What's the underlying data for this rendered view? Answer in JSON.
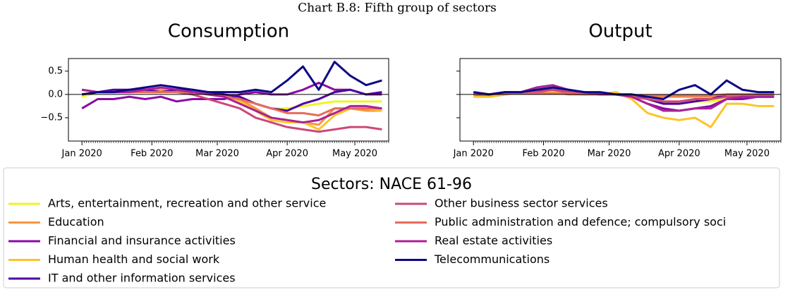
{
  "title": "Chart B.8: Fifth group of sectors",
  "legend_title": "Sectors: NACE 61-96",
  "chart_data": [
    {
      "type": "line",
      "title": "Consumption",
      "hline": 0,
      "xminor": 1,
      "x": [
        0,
        7,
        14,
        21,
        28,
        35,
        42,
        49,
        56,
        63,
        70,
        77,
        84,
        91,
        98,
        105,
        112,
        119,
        126,
        133
      ],
      "xlim": [
        -6,
        136
      ],
      "ylim": [
        -1.0,
        0.77
      ],
      "xticks": [
        {
          "value": 0,
          "label": "Jan 2020"
        },
        {
          "value": 31,
          "label": "Feb 2020"
        },
        {
          "value": 60,
          "label": "Mar 2020"
        },
        {
          "value": 91,
          "label": "Apr 2020"
        },
        {
          "value": 121,
          "label": "May 2020"
        }
      ],
      "yticks": [
        {
          "value": 0.5,
          "label": "0.5"
        },
        {
          "value": 0,
          "label": "0.0"
        },
        {
          "value": -0.5,
          "label": "−0.5"
        }
      ],
      "series": [
        {
          "name": "Arts, entertainment, recreation and other service",
          "color": "#eef522",
          "values": [
            -0.05,
            0.05,
            0.05,
            0.05,
            0.05,
            0.05,
            0.05,
            0.05,
            0,
            0,
            -0.1,
            -0.2,
            -0.3,
            -0.3,
            -0.25,
            -0.2,
            -0.15,
            -0.15,
            -0.15,
            -0.15
          ]
        },
        {
          "name": "Education",
          "color": "#f89540",
          "values": [
            0,
            0.05,
            0.05,
            0.05,
            0.1,
            0.1,
            0.05,
            0.05,
            0,
            0,
            -0.1,
            -0.3,
            -0.5,
            -0.55,
            -0.6,
            -0.65,
            -0.3,
            -0.3,
            -0.35,
            -0.35
          ]
        },
        {
          "name": "Financial and insurance activities",
          "color": "#8b0aa5",
          "values": [
            -0.3,
            -0.1,
            -0.1,
            -0.05,
            -0.1,
            -0.05,
            -0.15,
            -0.1,
            -0.1,
            -0.1,
            0,
            0.05,
            0,
            0,
            0.1,
            0.25,
            0.1,
            0.1,
            0,
            0
          ]
        },
        {
          "name": "Human health and social work",
          "color": "#fdc328",
          "values": [
            0,
            0.05,
            0.05,
            0.1,
            0.05,
            0.05,
            0.1,
            0.05,
            0,
            0,
            -0.15,
            -0.35,
            -0.55,
            -0.6,
            -0.6,
            -0.75,
            -0.45,
            -0.3,
            -0.3,
            -0.35
          ]
        },
        {
          "name": "IT and other information services",
          "color": "#5002a2",
          "values": [
            0.1,
            0.05,
            0.1,
            0.1,
            0.1,
            0.05,
            0.1,
            0.1,
            0.05,
            0,
            -0.05,
            -0.2,
            -0.3,
            -0.35,
            -0.2,
            -0.1,
            0.05,
            0.1,
            0,
            0.05
          ]
        },
        {
          "name": "Other business sector services",
          "color": "#cc4778",
          "values": [
            0,
            0.05,
            0.05,
            0.05,
            0.05,
            0.05,
            0.05,
            0,
            -0.1,
            -0.2,
            -0.3,
            -0.5,
            -0.6,
            -0.7,
            -0.75,
            -0.8,
            -0.75,
            -0.7,
            -0.7,
            -0.75
          ]
        },
        {
          "name": "Public administration and defence; compulsory soci",
          "color": "#e66c5c",
          "values": [
            0,
            0.05,
            0.05,
            0.05,
            0.05,
            0.05,
            0.05,
            0.05,
            0,
            -0.05,
            -0.1,
            -0.2,
            -0.3,
            -0.4,
            -0.4,
            -0.45,
            -0.3,
            -0.3,
            -0.3,
            -0.3
          ]
        },
        {
          "name": "Real estate activities",
          "color": "#a82296",
          "values": [
            0.1,
            0.05,
            0.05,
            0.05,
            0.1,
            0.15,
            0.1,
            0.05,
            0,
            -0.05,
            -0.2,
            -0.35,
            -0.5,
            -0.55,
            -0.6,
            -0.55,
            -0.4,
            -0.25,
            -0.25,
            -0.3
          ]
        },
        {
          "name": "Telecommunications",
          "color": "#0d0887",
          "values": [
            0,
            0.05,
            0.05,
            0.1,
            0.15,
            0.2,
            0.15,
            0.1,
            0.05,
            0.05,
            0.05,
            0.1,
            0.05,
            0.3,
            0.6,
            0.1,
            0.7,
            0.4,
            0.2,
            0.3
          ]
        }
      ]
    },
    {
      "type": "line",
      "title": "Output",
      "hline": 0,
      "xminor": 1,
      "sharey": true,
      "x": [
        0,
        7,
        14,
        21,
        28,
        35,
        42,
        49,
        56,
        63,
        70,
        77,
        84,
        91,
        98,
        105,
        112,
        119,
        126,
        133
      ],
      "xlim": [
        -6,
        136
      ],
      "ylim": [
        -1.0,
        0.77
      ],
      "xticks": [
        {
          "value": 0,
          "label": "Jan 2020"
        },
        {
          "value": 31,
          "label": "Feb 2020"
        },
        {
          "value": 60,
          "label": "Mar 2020"
        },
        {
          "value": 91,
          "label": "Apr 2020"
        },
        {
          "value": 121,
          "label": "May 2020"
        }
      ],
      "series": [
        {
          "name": "Arts, entertainment, recreation and other service",
          "color": "#eef522",
          "values": [
            0,
            0,
            0.05,
            0.05,
            0.05,
            0.05,
            0.05,
            0.05,
            0,
            0,
            -0.05,
            -0.1,
            -0.15,
            -0.15,
            -0.15,
            -0.15,
            -0.1,
            -0.05,
            -0.05,
            -0.05
          ]
        },
        {
          "name": "Education",
          "color": "#f89540",
          "values": [
            0,
            0,
            0.05,
            0.05,
            0.05,
            0.05,
            0,
            0,
            0,
            0,
            -0.05,
            -0.05,
            -0.05,
            -0.05,
            -0.05,
            -0.05,
            -0.05,
            -0.05,
            -0.05,
            -0.05
          ]
        },
        {
          "name": "Financial and insurance activities",
          "color": "#8b0aa5",
          "values": [
            0,
            -0.05,
            0,
            0.05,
            0.1,
            0.15,
            0.1,
            0.05,
            0,
            0,
            -0.05,
            -0.2,
            -0.3,
            -0.35,
            -0.3,
            -0.25,
            -0.1,
            -0.1,
            -0.05,
            -0.05
          ]
        },
        {
          "name": "Human health and social work",
          "color": "#fdc328",
          "values": [
            -0.05,
            -0.05,
            0,
            0.05,
            0.05,
            0.05,
            0.05,
            0.05,
            0,
            0.05,
            -0.1,
            -0.4,
            -0.5,
            -0.55,
            -0.5,
            -0.7,
            -0.2,
            -0.2,
            -0.25,
            -0.25
          ]
        },
        {
          "name": "IT and other information services",
          "color": "#5002a2",
          "values": [
            0,
            0,
            0.05,
            0.05,
            0.1,
            0.1,
            0.05,
            0.05,
            0,
            0,
            0,
            -0.1,
            -0.2,
            -0.2,
            -0.15,
            -0.1,
            0,
            0,
            0,
            0
          ]
        },
        {
          "name": "Other business sector services",
          "color": "#cc4778",
          "values": [
            0,
            0,
            0.05,
            0.05,
            0.05,
            0.1,
            0.05,
            0.05,
            0,
            0,
            -0.05,
            -0.1,
            -0.15,
            -0.15,
            -0.1,
            -0.1,
            -0.05,
            -0.05,
            -0.05,
            -0.05
          ]
        },
        {
          "name": "Public administration and defence; compulsory soci",
          "color": "#e66c5c",
          "values": [
            0,
            0,
            0.02,
            0.02,
            0.02,
            0.02,
            0.02,
            0,
            0,
            0,
            -0.02,
            -0.02,
            -0.02,
            -0.02,
            -0.02,
            -0.02,
            0,
            0,
            0,
            0
          ]
        },
        {
          "name": "Real estate activities",
          "color": "#a82296",
          "values": [
            0.05,
            0,
            0.05,
            0.05,
            0.15,
            0.2,
            0.1,
            0.05,
            0,
            0,
            -0.05,
            -0.2,
            -0.35,
            -0.35,
            -0.3,
            -0.3,
            -0.1,
            -0.05,
            -0.05,
            -0.05
          ]
        },
        {
          "name": "Telecommunications",
          "color": "#0d0887",
          "values": [
            0.05,
            0,
            0.05,
            0.05,
            0.1,
            0.15,
            0.1,
            0.05,
            0.05,
            0,
            0,
            -0.05,
            -0.1,
            0.1,
            0.2,
            0,
            0.3,
            0.1,
            0.05,
            0.05
          ]
        }
      ]
    }
  ]
}
